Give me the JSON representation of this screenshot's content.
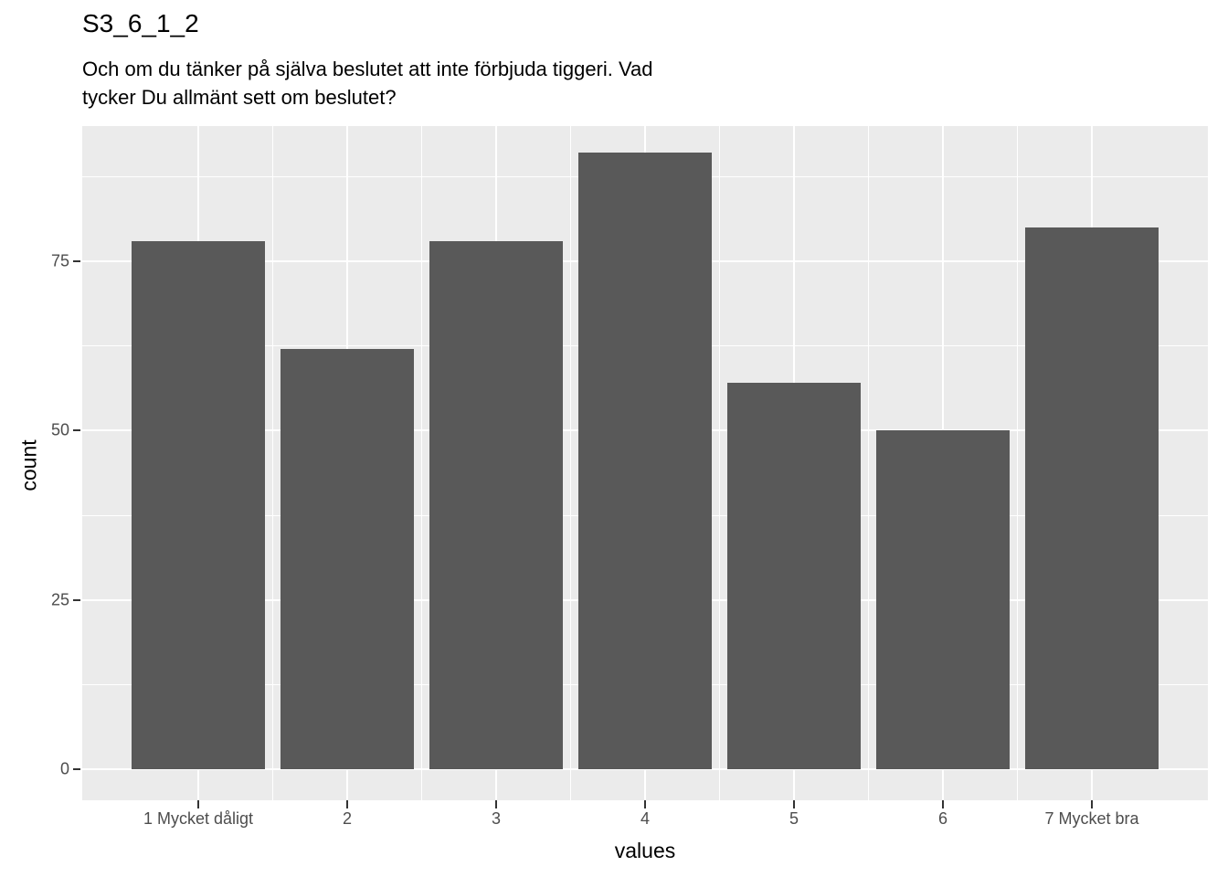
{
  "title": "S3_6_1_2",
  "subtitle_lines": [
    "Och om du tänker på själva beslutet att inte förbjuda tiggeri. Vad",
    "tycker Du allmänt sett om beslutet?"
  ],
  "chart_data": {
    "type": "bar",
    "title": "S3_6_1_2",
    "subtitle": "Och om du tänker på själva beslutet att inte förbjuda tiggeri. Vad tycker Du allmänt sett om beslutet?",
    "categories": [
      "1 Mycket dåligt",
      "2",
      "3",
      "4",
      "5",
      "6",
      "7 Mycket bra"
    ],
    "values": [
      78,
      62,
      78,
      91,
      57,
      50,
      80
    ],
    "xlabel": "values",
    "ylabel": "count",
    "y_major_ticks": [
      0,
      25,
      50,
      75
    ],
    "y_minor_ticks": [
      12.5,
      37.5,
      62.5,
      87.5
    ],
    "ylim": [
      -4.6,
      95.0
    ],
    "grid": "on",
    "legend": "none",
    "colors": {
      "bar": "#595959",
      "panel_background": "#EBEBEB",
      "gridline": "#FFFFFF",
      "tick_label": "#4D4D4D",
      "tick_mark": "#333333",
      "text": "#000000",
      "figure_background": "#FFFFFF"
    }
  }
}
